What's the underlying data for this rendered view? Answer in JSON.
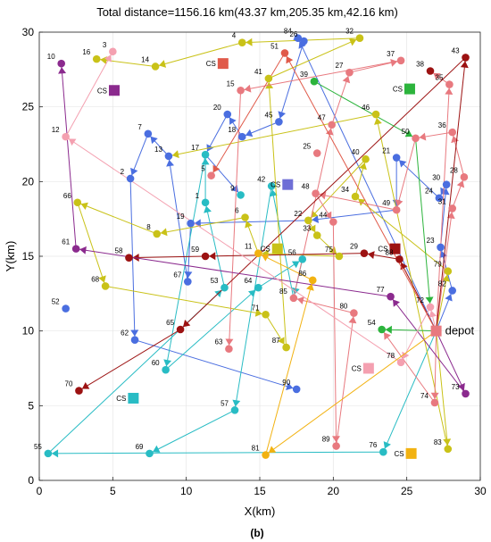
{
  "chart_data": {
    "type": "scatter",
    "title": "Total distance=1156.16 km(43.37 km,205.35 km,42.16 km)",
    "xlabel": "X(km)",
    "ylabel": "Y(km)",
    "xlim": [
      0,
      30
    ],
    "ylim": [
      0,
      30
    ],
    "xticks": [
      0,
      5,
      10,
      15,
      20,
      25,
      30
    ],
    "yticks": [
      0,
      5,
      10,
      15,
      20,
      25,
      30
    ],
    "grid": true,
    "panel_label": "(b)",
    "depot": {
      "label": "depot",
      "x": 27.0,
      "y": 10.0,
      "color": "#e8797f"
    },
    "charging_stations": [
      {
        "label": "CS",
        "x": 12.5,
        "y": 27.9,
        "color": "#e05a4a"
      },
      {
        "label": "CS",
        "x": 5.1,
        "y": 26.1,
        "color": "#8b2a8e"
      },
      {
        "label": "CS",
        "x": 25.2,
        "y": 26.2,
        "color": "#2cb43c"
      },
      {
        "label": "CS",
        "x": 16.9,
        "y": 19.8,
        "color": "#6f6fd6"
      },
      {
        "label": "CS",
        "x": 24.2,
        "y": 15.5,
        "color": "#9c1212"
      },
      {
        "label": "CS",
        "x": 16.2,
        "y": 15.5,
        "color": "#c9c218"
      },
      {
        "label": "CS",
        "x": 22.4,
        "y": 7.5,
        "color": "#f4a0b0"
      },
      {
        "label": "CS",
        "x": 6.4,
        "y": 5.5,
        "color": "#28bcc4"
      },
      {
        "label": "CS",
        "x": 25.3,
        "y": 1.8,
        "color": "#f2b211"
      }
    ],
    "customers": [
      {
        "label": "1",
        "x": 11.3,
        "y": 18.6,
        "color": "#28bcc4"
      },
      {
        "label": "2",
        "x": 6.2,
        "y": 20.2,
        "color": "#4a6ee0"
      },
      {
        "label": "3",
        "x": 5.0,
        "y": 28.7,
        "color": "#f4a0b0"
      },
      {
        "label": "4",
        "x": 13.8,
        "y": 29.3,
        "color": "#c9c218"
      },
      {
        "label": "5",
        "x": 11.7,
        "y": 20.4,
        "color": "#e8797f"
      },
      {
        "label": "6",
        "x": 14.0,
        "y": 17.6,
        "color": "#c9c218"
      },
      {
        "label": "7",
        "x": 7.4,
        "y": 23.2,
        "color": "#4a6ee0"
      },
      {
        "label": "8",
        "x": 8.0,
        "y": 16.5,
        "color": "#c9c218"
      },
      {
        "label": "9",
        "x": 13.7,
        "y": 19.1,
        "color": "#28bcc4"
      },
      {
        "label": "10",
        "x": 1.5,
        "y": 27.9,
        "color": "#8b2a8e"
      },
      {
        "label": "11",
        "x": 14.9,
        "y": 15.2,
        "color": "#f2b211"
      },
      {
        "label": "12",
        "x": 1.8,
        "y": 23.0,
        "color": "#f4a0b0"
      },
      {
        "label": "13",
        "x": 8.8,
        "y": 21.7,
        "color": "#4a6ee0"
      },
      {
        "label": "14",
        "x": 7.9,
        "y": 27.7,
        "color": "#c9c218"
      },
      {
        "label": "15",
        "x": 13.7,
        "y": 26.1,
        "color": "#e8797f"
      },
      {
        "label": "16",
        "x": 3.9,
        "y": 28.2,
        "color": "#c9c218"
      },
      {
        "label": "17",
        "x": 11.3,
        "y": 21.8,
        "color": "#28bcc4"
      },
      {
        "label": "18",
        "x": 13.8,
        "y": 23.0,
        "color": "#4a6ee0"
      },
      {
        "label": "19",
        "x": 10.3,
        "y": 17.2,
        "color": "#4a6ee0"
      },
      {
        "label": "20",
        "x": 12.8,
        "y": 24.5,
        "color": "#4a6ee0"
      },
      {
        "label": "21",
        "x": 24.3,
        "y": 21.6,
        "color": "#4a6ee0"
      },
      {
        "label": "22",
        "x": 18.3,
        "y": 17.4,
        "color": "#c9c218"
      },
      {
        "label": "23",
        "x": 27.3,
        "y": 15.6,
        "color": "#4a6ee0"
      },
      {
        "label": "24",
        "x": 27.2,
        "y": 18.9,
        "color": "#4a6ee0"
      },
      {
        "label": "25",
        "x": 18.9,
        "y": 21.9,
        "color": "#e8797f"
      },
      {
        "label": "26",
        "x": 18.0,
        "y": 29.4,
        "color": "#4a6ee0"
      },
      {
        "label": "27",
        "x": 21.1,
        "y": 27.3,
        "color": "#e8797f"
      },
      {
        "label": "28",
        "x": 28.9,
        "y": 20.3,
        "color": "#e8797f"
      },
      {
        "label": "29",
        "x": 22.1,
        "y": 15.2,
        "color": "#9c1212"
      },
      {
        "label": "30",
        "x": 27.7,
        "y": 19.8,
        "color": "#4a6ee0"
      },
      {
        "label": "31",
        "x": 28.1,
        "y": 18.2,
        "color": "#e8797f"
      },
      {
        "label": "32",
        "x": 21.8,
        "y": 29.6,
        "color": "#c9c218"
      },
      {
        "label": "33",
        "x": 18.9,
        "y": 16.4,
        "color": "#c9c218"
      },
      {
        "label": "34",
        "x": 21.5,
        "y": 19.0,
        "color": "#c9c218"
      },
      {
        "label": "35",
        "x": 27.9,
        "y": 26.5,
        "color": "#e8797f"
      },
      {
        "label": "36",
        "x": 28.1,
        "y": 23.3,
        "color": "#e8797f"
      },
      {
        "label": "37",
        "x": 24.6,
        "y": 28.1,
        "color": "#e8797f"
      },
      {
        "label": "38",
        "x": 26.6,
        "y": 27.4,
        "color": "#9c1212"
      },
      {
        "label": "39",
        "x": 18.7,
        "y": 26.7,
        "color": "#2cb43c"
      },
      {
        "label": "40",
        "x": 22.2,
        "y": 21.5,
        "color": "#c9c218"
      },
      {
        "label": "41",
        "x": 15.6,
        "y": 26.9,
        "color": "#c9c218"
      },
      {
        "label": "42",
        "x": 15.8,
        "y": 19.7,
        "color": "#28bcc4"
      },
      {
        "label": "43",
        "x": 29.0,
        "y": 28.3,
        "color": "#9c1212"
      },
      {
        "label": "44",
        "x": 20.0,
        "y": 17.3,
        "color": "#e8797f"
      },
      {
        "label": "45",
        "x": 16.3,
        "y": 24.0,
        "color": "#4a6ee0"
      },
      {
        "label": "46",
        "x": 22.9,
        "y": 24.5,
        "color": "#c9c218"
      },
      {
        "label": "47",
        "x": 19.9,
        "y": 23.8,
        "color": "#e8797f"
      },
      {
        "label": "48",
        "x": 18.8,
        "y": 19.2,
        "color": "#e8797f"
      },
      {
        "label": "49",
        "x": 24.3,
        "y": 18.1,
        "color": "#e8797f"
      },
      {
        "label": "50",
        "x": 25.6,
        "y": 22.9,
        "color": "#e8797f"
      },
      {
        "label": "51",
        "x": 16.7,
        "y": 28.6,
        "color": "#e05a4a"
      },
      {
        "label": "52",
        "x": 1.8,
        "y": 11.5,
        "color": "#4a6ee0"
      },
      {
        "label": "53",
        "x": 12.6,
        "y": 12.9,
        "color": "#28bcc4"
      },
      {
        "label": "54",
        "x": 23.3,
        "y": 10.1,
        "color": "#2cb43c"
      },
      {
        "label": "55",
        "x": 0.6,
        "y": 1.8,
        "color": "#28bcc4"
      },
      {
        "label": "56",
        "x": 17.9,
        "y": 14.8,
        "color": "#28bcc4"
      },
      {
        "label": "57",
        "x": 13.3,
        "y": 4.7,
        "color": "#28bcc4"
      },
      {
        "label": "58",
        "x": 6.1,
        "y": 14.9,
        "color": "#9c1212"
      },
      {
        "label": "59",
        "x": 11.3,
        "y": 15.0,
        "color": "#9c1212"
      },
      {
        "label": "60",
        "x": 8.6,
        "y": 7.4,
        "color": "#28bcc4"
      },
      {
        "label": "61",
        "x": 2.5,
        "y": 15.5,
        "color": "#8b2a8e"
      },
      {
        "label": "62",
        "x": 6.5,
        "y": 9.4,
        "color": "#4a6ee0"
      },
      {
        "label": "63",
        "x": 12.9,
        "y": 8.8,
        "color": "#e8797f"
      },
      {
        "label": "64",
        "x": 14.9,
        "y": 12.9,
        "color": "#28bcc4"
      },
      {
        "label": "65",
        "x": 9.6,
        "y": 10.1,
        "color": "#9c1212"
      },
      {
        "label": "66",
        "x": 2.6,
        "y": 18.6,
        "color": "#c9c218"
      },
      {
        "label": "67",
        "x": 10.1,
        "y": 13.3,
        "color": "#4a6ee0"
      },
      {
        "label": "68",
        "x": 4.5,
        "y": 13.0,
        "color": "#c9c218"
      },
      {
        "label": "69",
        "x": 7.5,
        "y": 1.8,
        "color": "#28bcc4"
      },
      {
        "label": "70",
        "x": 2.7,
        "y": 6.0,
        "color": "#9c1212"
      },
      {
        "label": "71",
        "x": 15.4,
        "y": 11.1,
        "color": "#c9c218"
      },
      {
        "label": "72",
        "x": 26.6,
        "y": 11.6,
        "color": "#f4a0b0"
      },
      {
        "label": "73",
        "x": 29.0,
        "y": 5.8,
        "color": "#8b2a8e"
      },
      {
        "label": "74",
        "x": 26.9,
        "y": 5.2,
        "color": "#e8797f"
      },
      {
        "label": "75",
        "x": 20.4,
        "y": 15.0,
        "color": "#c9c218"
      },
      {
        "label": "76",
        "x": 23.4,
        "y": 1.9,
        "color": "#28bcc4"
      },
      {
        "label": "77",
        "x": 23.9,
        "y": 12.3,
        "color": "#8b2a8e"
      },
      {
        "label": "78",
        "x": 24.6,
        "y": 7.9,
        "color": "#f4a0b0"
      },
      {
        "label": "79",
        "x": 27.8,
        "y": 14.0,
        "color": "#c9c218"
      },
      {
        "label": "80",
        "x": 21.4,
        "y": 11.2,
        "color": "#e8797f"
      },
      {
        "label": "81",
        "x": 15.4,
        "y": 1.7,
        "color": "#f2b211"
      },
      {
        "label": "82",
        "x": 28.1,
        "y": 12.7,
        "color": "#4a6ee0"
      },
      {
        "label": "83",
        "x": 27.8,
        "y": 2.1,
        "color": "#c9c218"
      },
      {
        "label": "84",
        "x": 17.6,
        "y": 29.6,
        "color": "#4a6ee0"
      },
      {
        "label": "85",
        "x": 17.3,
        "y": 12.2,
        "color": "#e8797f"
      },
      {
        "label": "86",
        "x": 18.6,
        "y": 13.4,
        "color": "#f2b211"
      },
      {
        "label": "87",
        "x": 16.8,
        "y": 8.9,
        "color": "#c9c218"
      },
      {
        "label": "88",
        "x": 24.5,
        "y": 14.8,
        "color": "#9c1212"
      },
      {
        "label": "89",
        "x": 20.2,
        "y": 2.3,
        "color": "#e8797f"
      },
      {
        "label": "90",
        "x": 17.5,
        "y": 6.1,
        "color": "#4a6ee0"
      }
    ],
    "routes": [
      {
        "color": "#4a6ee0",
        "path": [
          "depot",
          "82",
          "23",
          "30",
          "24",
          "21",
          "49",
          "22",
          "19",
          "67",
          "13",
          "7",
          "2",
          "62",
          "90"
        ]
      },
      {
        "color": "#4a6ee0",
        "path": [
          "depot",
          "84",
          "26",
          "45",
          "18",
          "20",
          "17",
          "9"
        ]
      },
      {
        "color": "#28bcc4",
        "path": [
          "depot",
          "76",
          "55",
          "53",
          "1",
          "17",
          "60",
          "64",
          "56",
          "85",
          "42",
          "57",
          "69"
        ]
      },
      {
        "color": "#c9c218",
        "path": [
          "depot",
          "79",
          "34",
          "40",
          "22",
          "33",
          "75",
          "11",
          "6",
          "8",
          "66",
          "68",
          "71",
          "87",
          "41",
          "32",
          "4",
          "14",
          "16"
        ]
      },
      {
        "color": "#c9c218",
        "path": [
          "depot",
          "83",
          "46",
          "13"
        ]
      },
      {
        "color": "#e8797f",
        "path": [
          "depot",
          "74",
          "54"
        ]
      },
      {
        "color": "#e8797f",
        "path": [
          "depot",
          "31",
          "28",
          "36",
          "50",
          "49",
          "48",
          "44",
          "89",
          "80",
          "85",
          "47",
          "27",
          "37",
          "15",
          "63"
        ]
      },
      {
        "color": "#e8797f",
        "path": [
          "depot",
          "35",
          "38"
        ]
      },
      {
        "color": "#9c1212",
        "path": [
          "depot",
          "43",
          "65",
          "70"
        ]
      },
      {
        "color": "#9c1212",
        "path": [
          "depot",
          "88",
          "29",
          "59",
          "58"
        ]
      },
      {
        "color": "#8b2a8e",
        "path": [
          "depot",
          "73",
          "77",
          "61",
          "10"
        ]
      },
      {
        "color": "#2cb43c",
        "path": [
          "depot",
          "54"
        ]
      },
      {
        "color": "#2cb43c",
        "path": [
          "39",
          "50",
          "72"
        ]
      },
      {
        "color": "#f4a0b0",
        "path": [
          "depot",
          "72",
          "78",
          "12",
          "3"
        ]
      },
      {
        "color": "#f2b211",
        "path": [
          "depot",
          "81",
          "86",
          "11"
        ]
      },
      {
        "color": "#e05a4a",
        "path": [
          "depot",
          "51",
          "5"
        ]
      }
    ]
  }
}
